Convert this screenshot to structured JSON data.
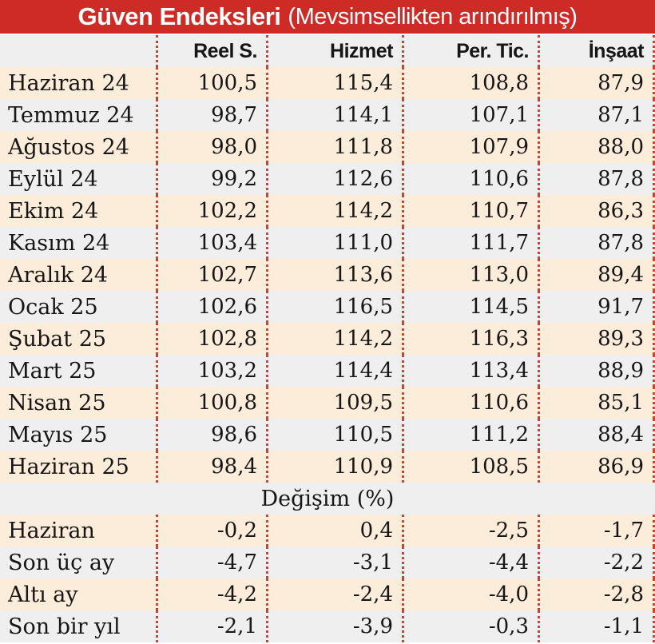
{
  "title": {
    "main": "Güven Endeksleri",
    "subtitle": "(Mevsimsellikten arındırılmış)"
  },
  "table": {
    "columns": [
      "Reel S.",
      "Hizmet",
      "Per. Tic.",
      "İnşaat"
    ],
    "rows": [
      {
        "label": "Haziran 24",
        "values": [
          "100,5",
          "115,4",
          "108,8",
          "87,9"
        ]
      },
      {
        "label": "Temmuz 24",
        "values": [
          "98,7",
          "114,1",
          "107,1",
          "87,1"
        ]
      },
      {
        "label": "Ağustos 24",
        "values": [
          "98,0",
          "111,8",
          "107,9",
          "88,0"
        ]
      },
      {
        "label": "Eylül 24",
        "values": [
          "99,2",
          "112,6",
          "110,6",
          "87,8"
        ]
      },
      {
        "label": "Ekim 24",
        "values": [
          "102,2",
          "114,2",
          "110,7",
          "86,3"
        ]
      },
      {
        "label": "Kasım 24",
        "values": [
          "103,4",
          "111,0",
          "111,7",
          "87,8"
        ]
      },
      {
        "label": "Aralık 24",
        "values": [
          "102,7",
          "113,6",
          "113,0",
          "89,4"
        ]
      },
      {
        "label": "Ocak 25",
        "values": [
          "102,6",
          "116,5",
          "114,5",
          "91,7"
        ]
      },
      {
        "label": "Şubat 25",
        "values": [
          "102,8",
          "114,2",
          "116,3",
          "89,3"
        ]
      },
      {
        "label": "Mart 25",
        "values": [
          "103,2",
          "114,4",
          "113,4",
          "88,9"
        ]
      },
      {
        "label": "Nisan 25",
        "values": [
          "100,8",
          "109,5",
          "110,6",
          "85,1"
        ]
      },
      {
        "label": "Mayıs 25",
        "values": [
          "98,6",
          "110,5",
          "111,2",
          "88,4"
        ]
      },
      {
        "label": "Haziran 25",
        "values": [
          "98,4",
          "110,9",
          "108,5",
          "86,9"
        ]
      }
    ],
    "section_label": "Değişim (%)",
    "change_rows": [
      {
        "label": "Haziran",
        "values": [
          "-0,2",
          "0,4",
          "-2,5",
          "-1,7"
        ]
      },
      {
        "label": "Son üç ay",
        "values": [
          "-4,7",
          "-3,1",
          "-4,4",
          "-2,2"
        ]
      },
      {
        "label": "Altı ay",
        "values": [
          "-4,2",
          "-2,4",
          "-4,0",
          "-2,8"
        ]
      },
      {
        "label": "Son bir yıl",
        "values": [
          "-2,1",
          "-3,9",
          "-0,3",
          "-1,1"
        ]
      }
    ]
  },
  "colors": {
    "title_bar": "#ce2b26",
    "dotted_separator": "#dd3a28",
    "row_peach": "#fcecda",
    "row_gray": "#efeff0",
    "text": "#161616",
    "title_text": "#ffffff"
  },
  "chart_data": {
    "type": "table",
    "title": "Güven Endeksleri (Mevsimsellikten arındırılmış)",
    "columns": [
      "Reel S.",
      "Hizmet",
      "Per. Tic.",
      "İnşaat"
    ],
    "categories": [
      "Haziran 24",
      "Temmuz 24",
      "Ağustos 24",
      "Eylül 24",
      "Ekim 24",
      "Kasım 24",
      "Aralık 24",
      "Ocak 25",
      "Şubat 25",
      "Mart 25",
      "Nisan 25",
      "Mayıs 25",
      "Haziran 25"
    ],
    "series": [
      {
        "name": "Reel S.",
        "values": [
          100.5,
          98.7,
          98.0,
          99.2,
          102.2,
          103.4,
          102.7,
          102.6,
          102.8,
          103.2,
          100.8,
          98.6,
          98.4
        ]
      },
      {
        "name": "Hizmet",
        "values": [
          115.4,
          114.1,
          111.8,
          112.6,
          114.2,
          111.0,
          113.6,
          116.5,
          114.2,
          114.4,
          109.5,
          110.5,
          110.9
        ]
      },
      {
        "name": "Per. Tic.",
        "values": [
          108.8,
          107.1,
          107.9,
          110.6,
          110.7,
          111.7,
          113.0,
          114.5,
          116.3,
          113.4,
          110.6,
          111.2,
          108.5
        ]
      },
      {
        "name": "İnşaat",
        "values": [
          87.9,
          87.1,
          88.0,
          87.8,
          86.3,
          87.8,
          89.4,
          91.7,
          89.3,
          88.9,
          85.1,
          88.4,
          86.9
        ]
      }
    ],
    "change_section": {
      "label": "Değişim (%)",
      "categories": [
        "Haziran",
        "Son üç ay",
        "Altı ay",
        "Son bir yıl"
      ],
      "series": [
        {
          "name": "Reel S.",
          "values": [
            -0.2,
            -4.7,
            -4.2,
            -2.1
          ]
        },
        {
          "name": "Hizmet",
          "values": [
            0.4,
            -3.1,
            -2.4,
            -3.9
          ]
        },
        {
          "name": "Per. Tic.",
          "values": [
            -2.5,
            -4.4,
            -4.0,
            -0.3
          ]
        },
        {
          "name": "İnşaat",
          "values": [
            -1.7,
            -2.2,
            -2.8,
            -1.1
          ]
        }
      ]
    }
  }
}
